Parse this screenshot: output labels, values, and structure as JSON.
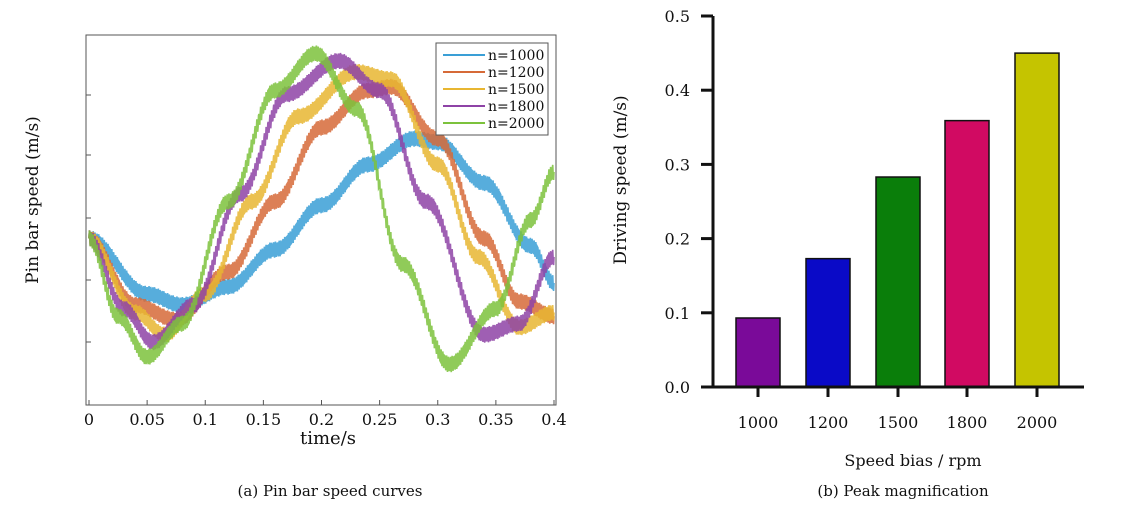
{
  "chart_data": [
    {
      "type": "line",
      "caption": "(a) Pin bar speed curves",
      "xlabel": "time/s",
      "ylabel": "Pin bar speed (m/s)",
      "xlim": [
        0,
        0.4
      ],
      "xticks": [
        "0",
        "0.05",
        "0.1",
        "0.15",
        "0.2",
        "0.25",
        "0.3",
        "0.35",
        "0.4"
      ],
      "ytick_labels_shown": false,
      "legend_position": "top-right",
      "series": [
        {
          "name": "n=1000",
          "color": "#3a9fd6",
          "x": [
            0,
            0.05,
            0.08,
            0.12,
            0.16,
            0.2,
            0.24,
            0.28,
            0.3,
            0.34,
            0.38,
            0.4
          ],
          "y": [
            0.45,
            0.3,
            0.27,
            0.32,
            0.42,
            0.54,
            0.65,
            0.72,
            0.71,
            0.6,
            0.43,
            0.33
          ]
        },
        {
          "name": "n=1200",
          "color": "#d66a38",
          "x": [
            0,
            0.04,
            0.075,
            0.12,
            0.16,
            0.2,
            0.24,
            0.26,
            0.3,
            0.34,
            0.37,
            0.4
          ],
          "y": [
            0.45,
            0.27,
            0.23,
            0.36,
            0.55,
            0.75,
            0.85,
            0.86,
            0.72,
            0.45,
            0.28,
            0.24
          ]
        },
        {
          "name": "n=1500",
          "color": "#e8b631",
          "x": [
            0,
            0.04,
            0.065,
            0.1,
            0.14,
            0.18,
            0.23,
            0.26,
            0.3,
            0.335,
            0.37,
            0.4
          ],
          "y": [
            0.45,
            0.25,
            0.19,
            0.3,
            0.55,
            0.78,
            0.9,
            0.88,
            0.65,
            0.4,
            0.21,
            0.25
          ]
        },
        {
          "name": "n=1800",
          "color": "#8e43a6",
          "x": [
            0,
            0.03,
            0.055,
            0.09,
            0.13,
            0.17,
            0.215,
            0.25,
            0.29,
            0.34,
            0.37,
            0.4
          ],
          "y": [
            0.45,
            0.26,
            0.17,
            0.27,
            0.57,
            0.84,
            0.93,
            0.85,
            0.55,
            0.19,
            0.22,
            0.4
          ]
        },
        {
          "name": "n=2000",
          "color": "#7cc23c",
          "x": [
            0,
            0.025,
            0.05,
            0.08,
            0.12,
            0.16,
            0.195,
            0.23,
            0.27,
            0.31,
            0.35,
            0.38,
            0.4
          ],
          "y": [
            0.45,
            0.24,
            0.13,
            0.22,
            0.55,
            0.85,
            0.95,
            0.8,
            0.38,
            0.11,
            0.26,
            0.5,
            0.63
          ]
        }
      ]
    },
    {
      "type": "bar",
      "caption": "(b) Peak magnification",
      "xlabel": "Speed bias / rpm",
      "ylabel": "Driving speed (m/s)",
      "categories": [
        "1000",
        "1200",
        "1500",
        "1800",
        "2000"
      ],
      "values": [
        0.093,
        0.173,
        0.283,
        0.359,
        0.45
      ],
      "colors": [
        "#7a0a99",
        "#0a0ac7",
        "#0a7e0a",
        "#d10a62",
        "#c5c400"
      ],
      "ylim": [
        0,
        0.5
      ],
      "yticks": [
        "0.0",
        "0.1",
        "0.2",
        "0.3",
        "0.4",
        "0.5"
      ]
    }
  ]
}
